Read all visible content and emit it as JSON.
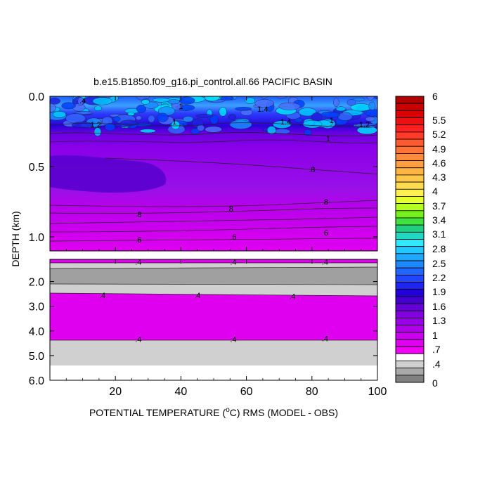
{
  "chart_data": {
    "type": "heatmap",
    "title": "b.e15.B1850.f09_g16.pi_control.all.66 PACIFIC BASIN",
    "xlabel_prefix": "POTENTIAL TEMPERATURE (",
    "xlabel_unit_sup": "o",
    "xlabel_suffix": "C) RMS (MODEL - OBS)",
    "ylabel": "DEPTH (km)",
    "xlim": [
      0,
      100
    ],
    "x_ticks": [
      "20",
      "40",
      "60",
      "80",
      "100"
    ],
    "x_tick_values": [
      20,
      40,
      60,
      80,
      100
    ],
    "upper_panel": {
      "ylim_km": [
        0.0,
        1.1
      ],
      "y_ticks": [
        "0.0",
        "0.5",
        "1.0"
      ],
      "y_tick_values": [
        0.0,
        0.5,
        1.0
      ]
    },
    "lower_panel": {
      "ylim_km": [
        1.1,
        6.0
      ],
      "y_ticks": [
        "2.0",
        "3.0",
        "4.0",
        "5.0",
        "6.0"
      ],
      "y_tick_values": [
        2.0,
        3.0,
        4.0,
        5.0,
        6.0
      ]
    },
    "colorbar": {
      "levels": [
        "6",
        "5.5",
        "5.2",
        "4.9",
        "4.6",
        "4.3",
        "4",
        "3.7",
        "3.4",
        "3.1",
        "2.8",
        "2.5",
        "2.2",
        "1.9",
        "1.6",
        "1.3",
        "1",
        ".7",
        ".4",
        "0"
      ],
      "level_values": [
        6,
        5.5,
        5.2,
        4.9,
        4.6,
        4.3,
        4,
        3.7,
        3.4,
        3.1,
        2.8,
        2.5,
        2.2,
        1.9,
        1.6,
        1.3,
        1,
        0.7,
        0.4,
        0
      ],
      "colormap": "NCL rainbow+gray (0 gray, .4 light gray, magenta, purple, blue, cyan, green, yellow, orange, red)"
    },
    "bands": [
      {
        "depth_km": [
          0.0,
          0.12
        ],
        "value": 1.4,
        "description": "noisy blue/cyan band"
      },
      {
        "depth_km": [
          0.12,
          0.22
        ],
        "value": 1.15,
        "description": "dark blue"
      },
      {
        "depth_km": [
          0.22,
          0.5
        ],
        "value": 0.9,
        "description": "purple"
      },
      {
        "depth_km": [
          0.5,
          0.75
        ],
        "value": 0.85,
        "description": "purple with indigo patch at x < 25"
      },
      {
        "depth_km": [
          0.75,
          1.1
        ],
        "value": 0.65,
        "description": "magenta"
      },
      {
        "depth_km": [
          1.1,
          1.15
        ],
        "value": 0.6,
        "description": "magenta strip"
      },
      {
        "depth_km": [
          1.15,
          1.6
        ],
        "value": 0.38,
        "description": "light gray"
      },
      {
        "depth_km": [
          1.6,
          2.1
        ],
        "value": 0.2,
        "description": "dark gray"
      },
      {
        "depth_km": [
          2.1,
          2.5
        ],
        "value": 0.38,
        "description": "light gray"
      },
      {
        "depth_km": [
          2.5,
          4.3
        ],
        "value": 0.5,
        "description": "magenta"
      },
      {
        "depth_km": [
          4.3,
          5.35
        ],
        "value": 0.38,
        "description": "light gray"
      }
    ],
    "contour_labels_upper": [
      {
        "x": 10,
        "depth": 0.03,
        "text": ".4"
      },
      {
        "x": 40,
        "depth": 0.07,
        "text": "1"
      },
      {
        "x": 65,
        "depth": 0.09,
        "text": "1.4"
      },
      {
        "x": 38,
        "depth": 0.18,
        "text": "1"
      },
      {
        "x": 14,
        "depth": 0.2,
        "text": "1.2"
      },
      {
        "x": 72,
        "depth": 0.18,
        "text": "1.4"
      },
      {
        "x": 86,
        "depth": 0.17,
        "text": "1"
      },
      {
        "x": 96,
        "depth": 0.2,
        "text": "1.2"
      },
      {
        "x": 85,
        "depth": 0.3,
        "text": "1"
      },
      {
        "x": 80,
        "depth": 0.52,
        "text": ".8"
      },
      {
        "x": 84,
        "depth": 0.75,
        "text": ".8"
      },
      {
        "x": 27,
        "depth": 0.84,
        "text": ".8"
      },
      {
        "x": 55,
        "depth": 0.8,
        "text": ".8"
      },
      {
        "x": 27,
        "depth": 1.02,
        "text": ".6"
      },
      {
        "x": 56,
        "depth": 1.0,
        "text": ".6"
      },
      {
        "x": 84,
        "depth": 0.97,
        "text": ".6"
      }
    ],
    "contour_labels_lower": [
      {
        "x": 27,
        "depth": 1.2,
        "text": ".4"
      },
      {
        "x": 56,
        "depth": 1.2,
        "text": ".4"
      },
      {
        "x": 84,
        "depth": 1.2,
        "text": ".4"
      },
      {
        "x": 16,
        "depth": 2.55,
        "text": ".4"
      },
      {
        "x": 45,
        "depth": 2.55,
        "text": ".4"
      },
      {
        "x": 74,
        "depth": 2.6,
        "text": ".4"
      },
      {
        "x": 27,
        "depth": 4.33,
        "text": ".4"
      },
      {
        "x": 56,
        "depth": 4.33,
        "text": ".4"
      },
      {
        "x": 84,
        "depth": 4.3,
        "text": ".4"
      }
    ]
  }
}
